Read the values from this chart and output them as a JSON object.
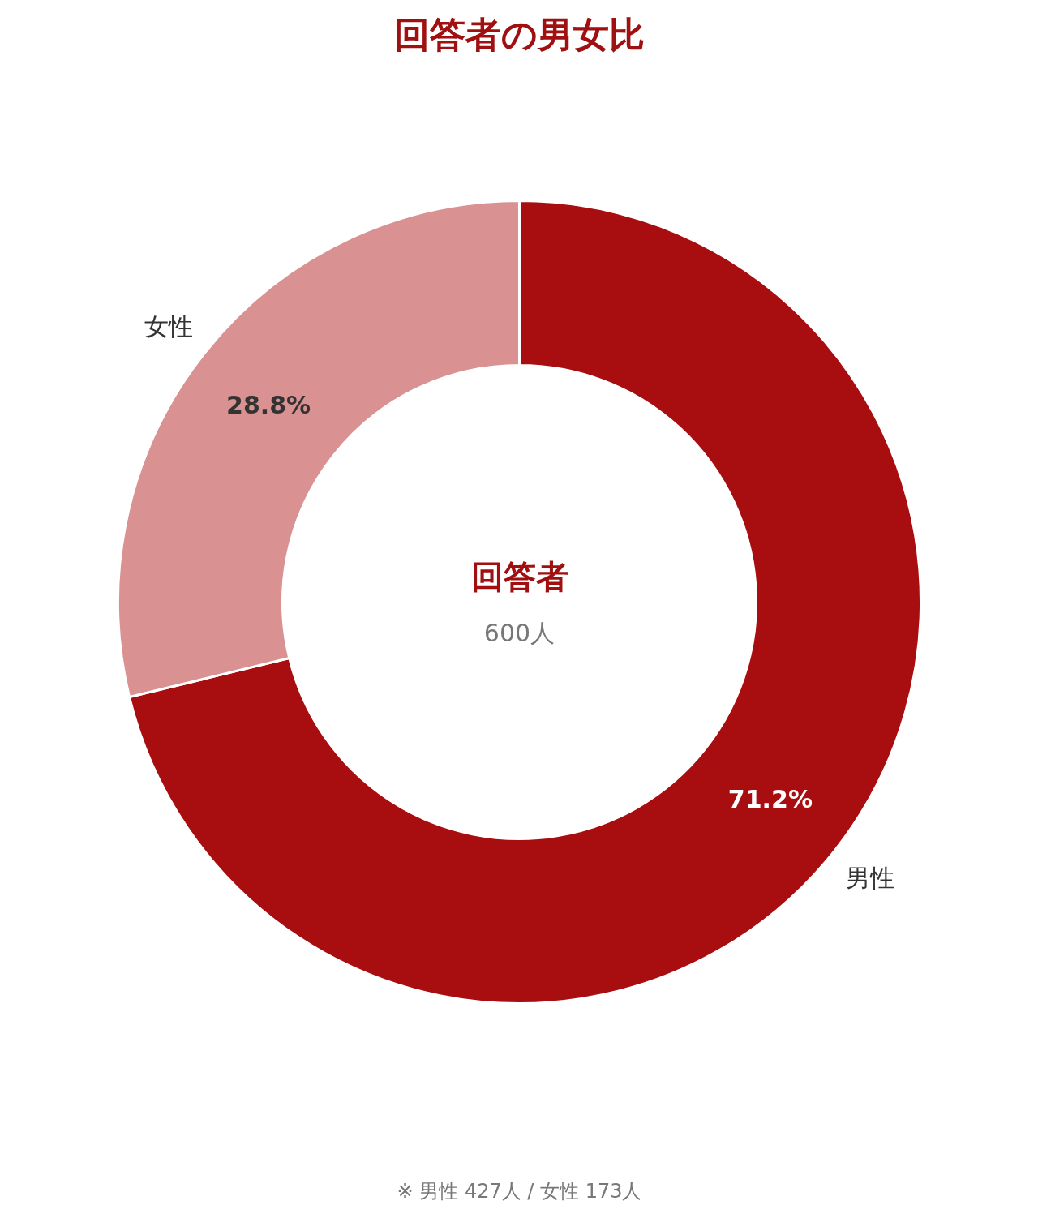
{
  "chart_data": {
    "type": "donut",
    "title": "回答者の男女比",
    "categories": [
      "男性",
      "女性"
    ],
    "values": [
      71.2,
      28.8
    ],
    "colors": [
      "#a80d0f",
      "#d99191"
    ],
    "value_labels": [
      "71.2%",
      "28.8%"
    ],
    "annotations": [
      "回答者",
      "600人",
      "※ 男性 427人 / 女性 173人"
    ]
  }
}
